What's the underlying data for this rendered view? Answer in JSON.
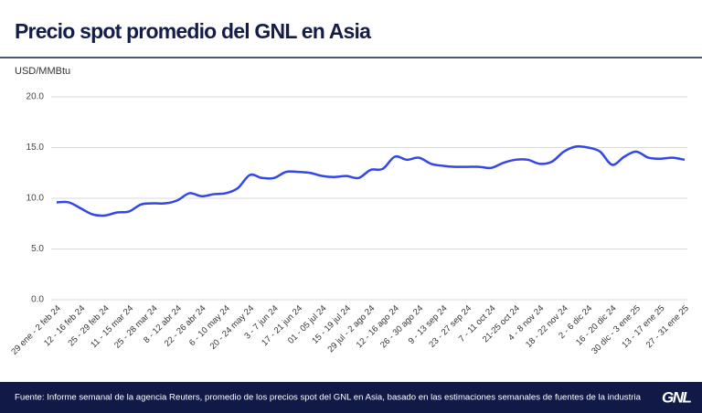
{
  "chart_data": {
    "type": "line",
    "title": "Precio spot promedio del GNL en Asia",
    "y_label": "USD/MMBtu",
    "source": "Fuente: Informe semanal de la agencia Reuters, promedio de los precios spot del GNL en Asia, basado en las estimaciones semanales de fuentes de la industria",
    "logo": "GNL",
    "categories": [
      "29 ene - 2 feb 24",
      null,
      "12 - 16 feb 24",
      null,
      "25 - 29 feb 24",
      null,
      "11 - 15 mar 24",
      null,
      "25 - 28 mar 24",
      null,
      "8 - 12 abr 24",
      null,
      "22 - 26 abr 24",
      null,
      "6 - 10 may 24",
      null,
      "20 - 24 may 24",
      null,
      "3 - 7 jun 24",
      null,
      "17 - 21 jun 24",
      null,
      "01 - 05 jul 24",
      null,
      "15 - 19 jul 24",
      null,
      "29 jul - 2 ago 24",
      null,
      "12 - 16 ago 24",
      null,
      "26 - 30 ago 24",
      null,
      "9 - 13 sep 24",
      null,
      "23 - 27 sep 24",
      null,
      "7 - 11 oct 24",
      null,
      "21-25 oct 24",
      null,
      "4 - 8 nov 24",
      null,
      "18 - 22 nov 24",
      null,
      "2 - 6 dic 24",
      null,
      "16 - 20 dic 24",
      null,
      "30 dic - 3 ene 25",
      null,
      "13 - 17 ene 25",
      null,
      "27 - 31 ene 25"
    ],
    "series": [
      {
        "name": "Precio spot",
        "color": "#3347e6",
        "values": [
          9.6,
          9.6,
          9.0,
          8.4,
          8.3,
          8.6,
          8.7,
          9.4,
          9.5,
          9.5,
          9.8,
          10.5,
          10.2,
          10.4,
          10.5,
          11.0,
          12.3,
          12.0,
          12.0,
          12.6,
          12.6,
          12.5,
          12.2,
          12.1,
          12.2,
          12.0,
          12.8,
          12.9,
          14.1,
          13.8,
          14.0,
          13.4,
          13.2,
          13.1,
          13.1,
          13.1,
          13.0,
          13.5,
          13.8,
          13.8,
          13.4,
          13.6,
          14.6,
          15.1,
          15.0,
          14.6,
          13.3,
          14.1,
          14.6,
          14.0,
          13.9,
          14.0,
          13.8
        ]
      }
    ],
    "ylim": [
      0,
      20
    ],
    "yticks": [
      {
        "value": 0,
        "label": "0.0"
      },
      {
        "value": 5,
        "label": "5.0"
      },
      {
        "value": 10,
        "label": "10.0"
      },
      {
        "value": 15,
        "label": "15.0"
      },
      {
        "value": 20,
        "label": "20.0"
      }
    ],
    "grid": true
  }
}
